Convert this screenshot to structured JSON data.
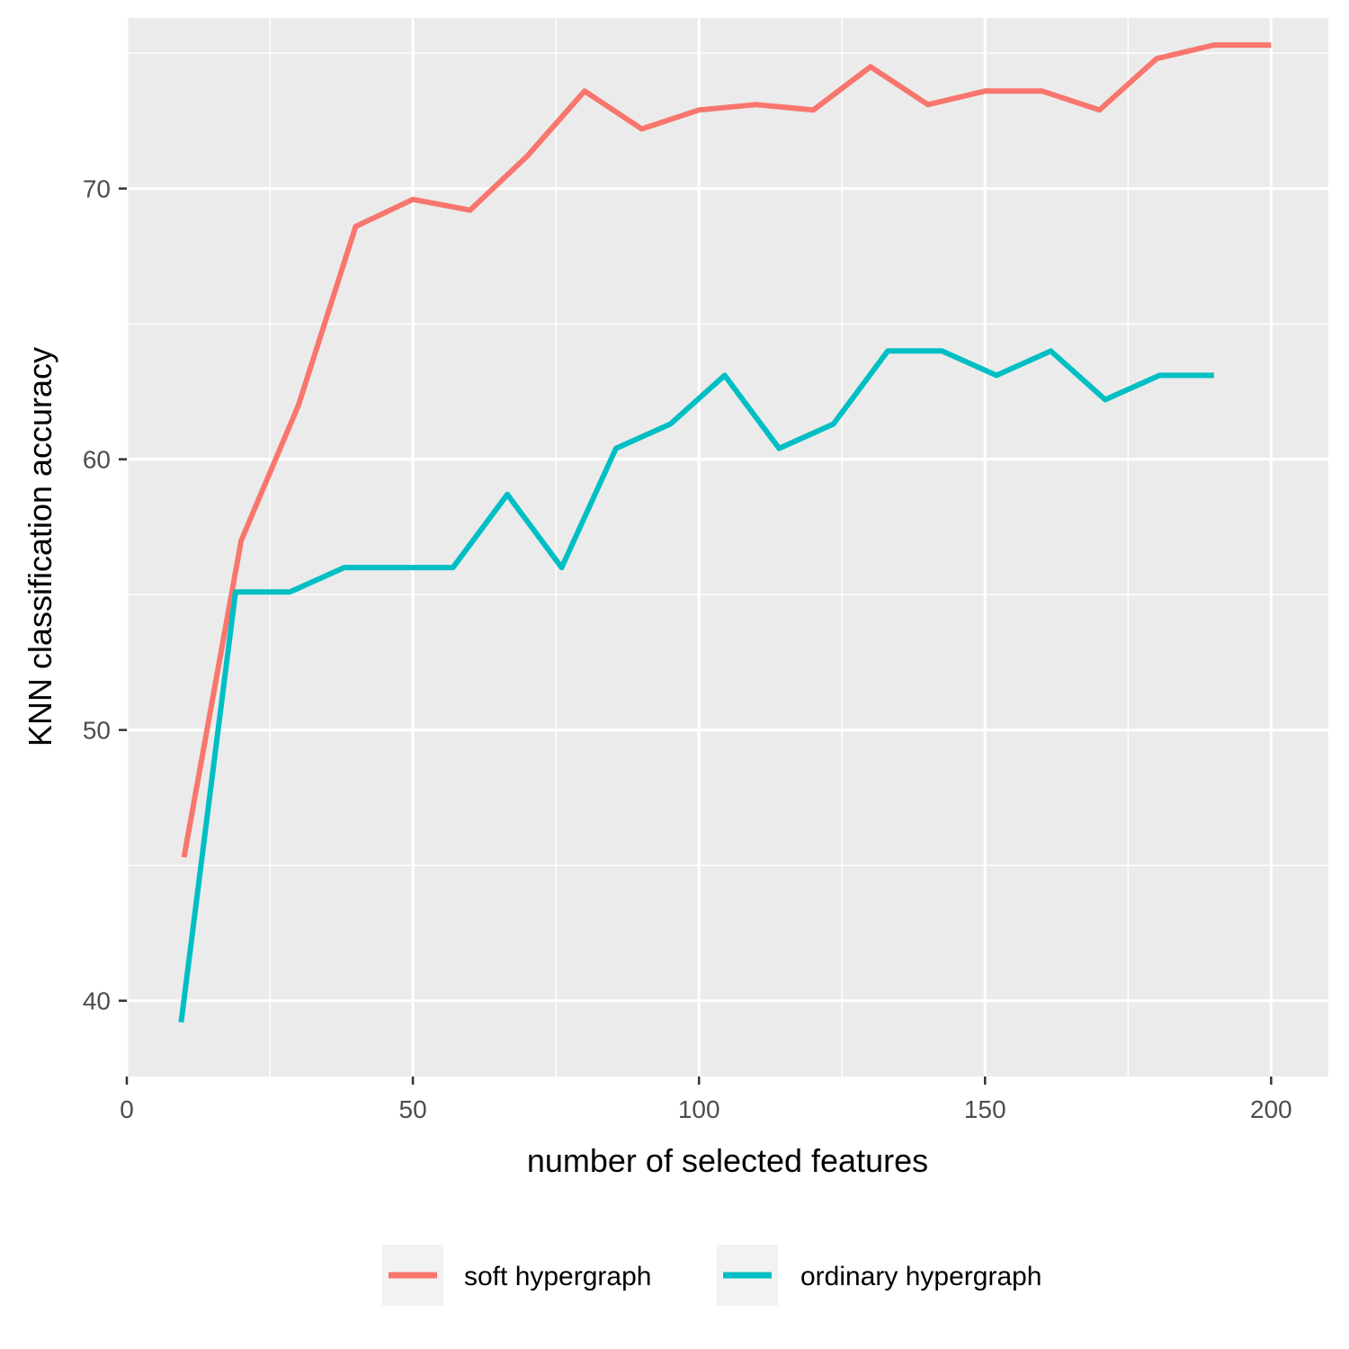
{
  "chart_data": {
    "type": "line",
    "title": "",
    "xlabel": "number of selected features",
    "ylabel": "KNN classification accuracy",
    "xlim": [
      0,
      210
    ],
    "ylim": [
      37.2,
      76.3
    ],
    "x_ticks": [
      0,
      50,
      100,
      150,
      200
    ],
    "y_ticks": [
      40,
      50,
      60,
      70
    ],
    "grid": true,
    "legend_position": "bottom",
    "colors": {
      "panel": "#ebebeb",
      "grid": "#ffffff",
      "soft": "#f8766d",
      "ordinary": "#00bfc4"
    },
    "series": [
      {
        "name": "soft hypergraph",
        "color": "#f8766d",
        "x": [
          10,
          20,
          30,
          40,
          50,
          60,
          70,
          80,
          90,
          100,
          110,
          120,
          130,
          140,
          150,
          160,
          170,
          180,
          190,
          200
        ],
        "y": [
          45.3,
          57.0,
          62.0,
          68.6,
          69.6,
          69.2,
          71.2,
          73.6,
          72.2,
          72.9,
          73.1,
          72.9,
          74.5,
          73.1,
          73.6,
          73.6,
          72.9,
          74.8,
          75.3,
          75.3
        ]
      },
      {
        "name": "ordinary hypergraph",
        "color": "#00bfc4",
        "x": [
          9.5,
          19,
          28.5,
          38,
          47.5,
          57,
          66.5,
          76,
          85.5,
          95,
          104.5,
          114,
          123.5,
          133,
          142.5,
          152,
          161.5,
          171,
          180.5,
          190
        ],
        "y": [
          39.2,
          55.1,
          55.1,
          56.0,
          56.0,
          56.0,
          58.7,
          56.0,
          60.4,
          61.3,
          63.1,
          60.4,
          61.3,
          64.0,
          64.0,
          63.1,
          64.0,
          62.2,
          63.1,
          63.1
        ]
      }
    ]
  }
}
